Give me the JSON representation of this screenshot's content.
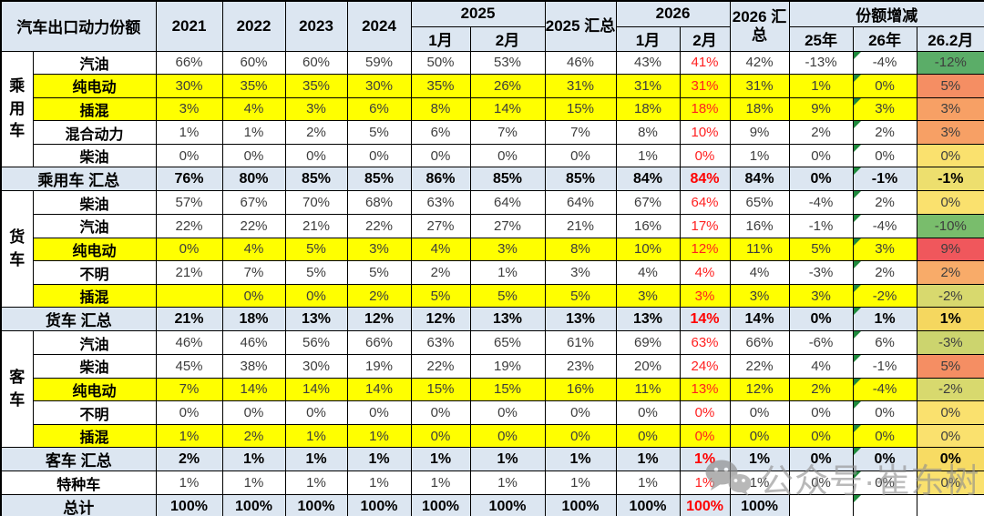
{
  "header": {
    "title": "汽车出口动力份额",
    "years": [
      "2021",
      "2022",
      "2023",
      "2024"
    ],
    "group_2025": "2025",
    "month1_2025": "1月",
    "month2_2025": "2月",
    "sum_2025": "2025 汇总",
    "group_2026": "2026",
    "month1_2026": "1月",
    "month2_2026": "2月",
    "sum_2026": "2026 汇总",
    "delta_title": "份额增减",
    "delta_cols": [
      "25年",
      "26年",
      "26.2月"
    ]
  },
  "colors": {
    "header_bg": "#DCE6F1",
    "summary_bg": "#DCE6F1",
    "highlight_bg": "#FFFF00",
    "red_text": "#FF0000",
    "grid": "#000000",
    "comment_triangle_green": "#1E8A3C",
    "scale_max_red": "#F0575C",
    "scale_mid_yellow": "#FAE16E",
    "scale_min_green": "#5BAD68"
  },
  "watermark": {
    "icon": "wechat-icon",
    "text": "公众号·崔东树"
  },
  "rows": [
    {
      "kind": "fuel",
      "group": {
        "label": "乘用车",
        "span": 5
      },
      "label": "汽油",
      "highlight": false,
      "values": [
        "66%",
        "60%",
        "60%",
        "59%",
        "50%",
        "53%",
        "46%",
        "43%",
        "41%",
        "42%",
        "-13%",
        "-4%",
        "-12%"
      ],
      "delta_color": "#5BAD68"
    },
    {
      "kind": "fuel",
      "label": "纯电动",
      "highlight": true,
      "values": [
        "30%",
        "35%",
        "35%",
        "30%",
        "35%",
        "26%",
        "31%",
        "31%",
        "31%",
        "31%",
        "1%",
        "0%",
        "5%"
      ],
      "delta_color": "#F58E63"
    },
    {
      "kind": "fuel",
      "label": "插混",
      "highlight": true,
      "values": [
        "3%",
        "4%",
        "3%",
        "6%",
        "8%",
        "14%",
        "15%",
        "18%",
        "18%",
        "18%",
        "9%",
        "3%",
        "3%"
      ],
      "delta_color": "#F7A065"
    },
    {
      "kind": "fuel",
      "label": "混合动力",
      "highlight": false,
      "values": [
        "1%",
        "1%",
        "2%",
        "5%",
        "6%",
        "7%",
        "7%",
        "8%",
        "10%",
        "9%",
        "2%",
        "2%",
        "3%"
      ],
      "delta_color": "#F7A065"
    },
    {
      "kind": "fuel",
      "label": "柴油",
      "highlight": false,
      "values": [
        "0%",
        "0%",
        "0%",
        "0%",
        "0%",
        "0%",
        "0%",
        "1%",
        "0%",
        "1%",
        "0%",
        "0%",
        "0%"
      ],
      "delta_color": "#FAE16E"
    },
    {
      "kind": "summary",
      "label": "乘用车 汇总",
      "highlight": false,
      "values": [
        "76%",
        "80%",
        "85%",
        "85%",
        "86%",
        "85%",
        "85%",
        "84%",
        "84%",
        "84%",
        "0%",
        "-1%",
        "-1%"
      ],
      "delta_color": "#EDDF6E"
    },
    {
      "kind": "fuel",
      "group": {
        "label": "货车",
        "span": 5
      },
      "label": "柴油",
      "highlight": false,
      "values": [
        "57%",
        "67%",
        "70%",
        "68%",
        "63%",
        "64%",
        "64%",
        "67%",
        "64%",
        "65%",
        "-4%",
        "2%",
        "0%"
      ],
      "delta_color": "#FAE16E"
    },
    {
      "kind": "fuel",
      "label": "汽油",
      "highlight": false,
      "values": [
        "22%",
        "22%",
        "21%",
        "22%",
        "27%",
        "27%",
        "21%",
        "16%",
        "17%",
        "16%",
        "-1%",
        "-4%",
        "-10%"
      ],
      "delta_color": "#79BD6C"
    },
    {
      "kind": "fuel",
      "label": "纯电动",
      "highlight": true,
      "values": [
        "0%",
        "4%",
        "5%",
        "3%",
        "4%",
        "3%",
        "8%",
        "10%",
        "12%",
        "11%",
        "5%",
        "3%",
        "9%"
      ],
      "delta_color": "#F0575C"
    },
    {
      "kind": "fuel",
      "label": "不明",
      "highlight": false,
      "values": [
        "21%",
        "7%",
        "5%",
        "5%",
        "2%",
        "1%",
        "3%",
        "4%",
        "4%",
        "4%",
        "-3%",
        "2%",
        "2%"
      ],
      "delta_color": "#F8AB69"
    },
    {
      "kind": "fuel",
      "label": "插混",
      "highlight": true,
      "values": [
        "",
        "0%",
        "0%",
        "2%",
        "5%",
        "5%",
        "5%",
        "3%",
        "3%",
        "3%",
        "3%",
        "-2%",
        "-2%"
      ],
      "delta_color": "#D8D96E"
    },
    {
      "kind": "summary",
      "label": "货车 汇总",
      "highlight": false,
      "values": [
        "21%",
        "18%",
        "13%",
        "12%",
        "12%",
        "13%",
        "13%",
        "13%",
        "14%",
        "14%",
        "0%",
        "1%",
        "1%"
      ],
      "delta_color": "#F5D75F"
    },
    {
      "kind": "fuel",
      "group": {
        "label": "客车",
        "span": 5
      },
      "label": "汽油",
      "highlight": false,
      "values": [
        "46%",
        "46%",
        "56%",
        "66%",
        "63%",
        "65%",
        "61%",
        "69%",
        "63%",
        "66%",
        "-6%",
        "6%",
        "-3%"
      ],
      "delta_color": "#CCD46E"
    },
    {
      "kind": "fuel",
      "label": "柴油",
      "highlight": false,
      "values": [
        "45%",
        "38%",
        "30%",
        "19%",
        "22%",
        "19%",
        "23%",
        "20%",
        "24%",
        "22%",
        "4%",
        "-1%",
        "5%"
      ],
      "delta_color": "#F58E63"
    },
    {
      "kind": "fuel",
      "label": "纯电动",
      "highlight": true,
      "values": [
        "7%",
        "14%",
        "14%",
        "14%",
        "15%",
        "15%",
        "16%",
        "11%",
        "13%",
        "12%",
        "2%",
        "-4%",
        "-2%"
      ],
      "delta_color": "#D8D96E"
    },
    {
      "kind": "fuel",
      "label": "不明",
      "highlight": false,
      "values": [
        "0%",
        "0%",
        "0%",
        "0%",
        "0%",
        "0%",
        "0%",
        "0%",
        "0%",
        "0%",
        "0%",
        "0%",
        "0%"
      ],
      "delta_color": "#FAE16E"
    },
    {
      "kind": "fuel",
      "label": "插混",
      "highlight": true,
      "values": [
        "1%",
        "2%",
        "1%",
        "1%",
        "0%",
        "0%",
        "0%",
        "0%",
        "0%",
        "0%",
        "0%",
        "0%",
        "0%"
      ],
      "delta_color": "#FAE16E"
    },
    {
      "kind": "summary",
      "label": "客车 汇总",
      "highlight": false,
      "values": [
        "2%",
        "1%",
        "1%",
        "1%",
        "1%",
        "1%",
        "1%",
        "1%",
        "1%",
        "1%",
        "0%",
        "0%",
        "0%"
      ],
      "delta_color": "#F7DB63"
    },
    {
      "kind": "band",
      "label": "特种车",
      "highlight": false,
      "values": [
        "1%",
        "1%",
        "1%",
        "1%",
        "1%",
        "1%",
        "1%",
        "1%",
        "1%",
        "1%",
        "0%",
        "0%",
        "0%"
      ],
      "delta_color": "#FAE16E"
    },
    {
      "kind": "summary",
      "label": "总计",
      "highlight": false,
      "plain_delta": true,
      "values": [
        "100%",
        "100%",
        "100%",
        "100%",
        "100%",
        "100%",
        "100%",
        "100%",
        "100%",
        "100%",
        "",
        "",
        ""
      ],
      "delta_color": null
    }
  ]
}
